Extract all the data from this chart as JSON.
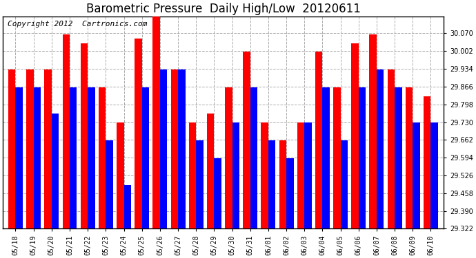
{
  "title": "Barometric Pressure  Daily High/Low  20120611",
  "copyright": "Copyright 2012  Cartronics.com",
  "dates": [
    "05/18",
    "05/19",
    "05/20",
    "05/21",
    "05/22",
    "05/23",
    "05/24",
    "05/25",
    "05/26",
    "05/27",
    "05/28",
    "05/29",
    "05/30",
    "05/31",
    "06/01",
    "06/02",
    "06/03",
    "06/04",
    "06/05",
    "06/06",
    "06/07",
    "06/08",
    "06/09",
    "06/10"
  ],
  "highs": [
    29.932,
    29.932,
    29.932,
    30.067,
    30.032,
    29.864,
    29.73,
    30.05,
    30.135,
    29.932,
    29.73,
    29.762,
    29.864,
    30.0,
    29.73,
    29.66,
    29.73,
    30.0,
    29.864,
    30.032,
    30.067,
    29.932,
    29.864,
    29.83
  ],
  "lows": [
    29.864,
    29.864,
    29.762,
    29.864,
    29.864,
    29.66,
    29.49,
    29.864,
    29.932,
    29.932,
    29.66,
    29.593,
    29.73,
    29.864,
    29.66,
    29.593,
    29.73,
    29.864,
    29.66,
    29.864,
    29.932,
    29.864,
    29.73,
    29.73
  ],
  "bar_high_color": "#ff0000",
  "bar_low_color": "#0000ff",
  "background_color": "#ffffff",
  "plot_bg_color": "#ffffff",
  "grid_color": "#aaaaaa",
  "ymin": 29.322,
  "ymax": 30.135,
  "ytick_step": 0.068,
  "title_fontsize": 12,
  "copyright_fontsize": 8
}
